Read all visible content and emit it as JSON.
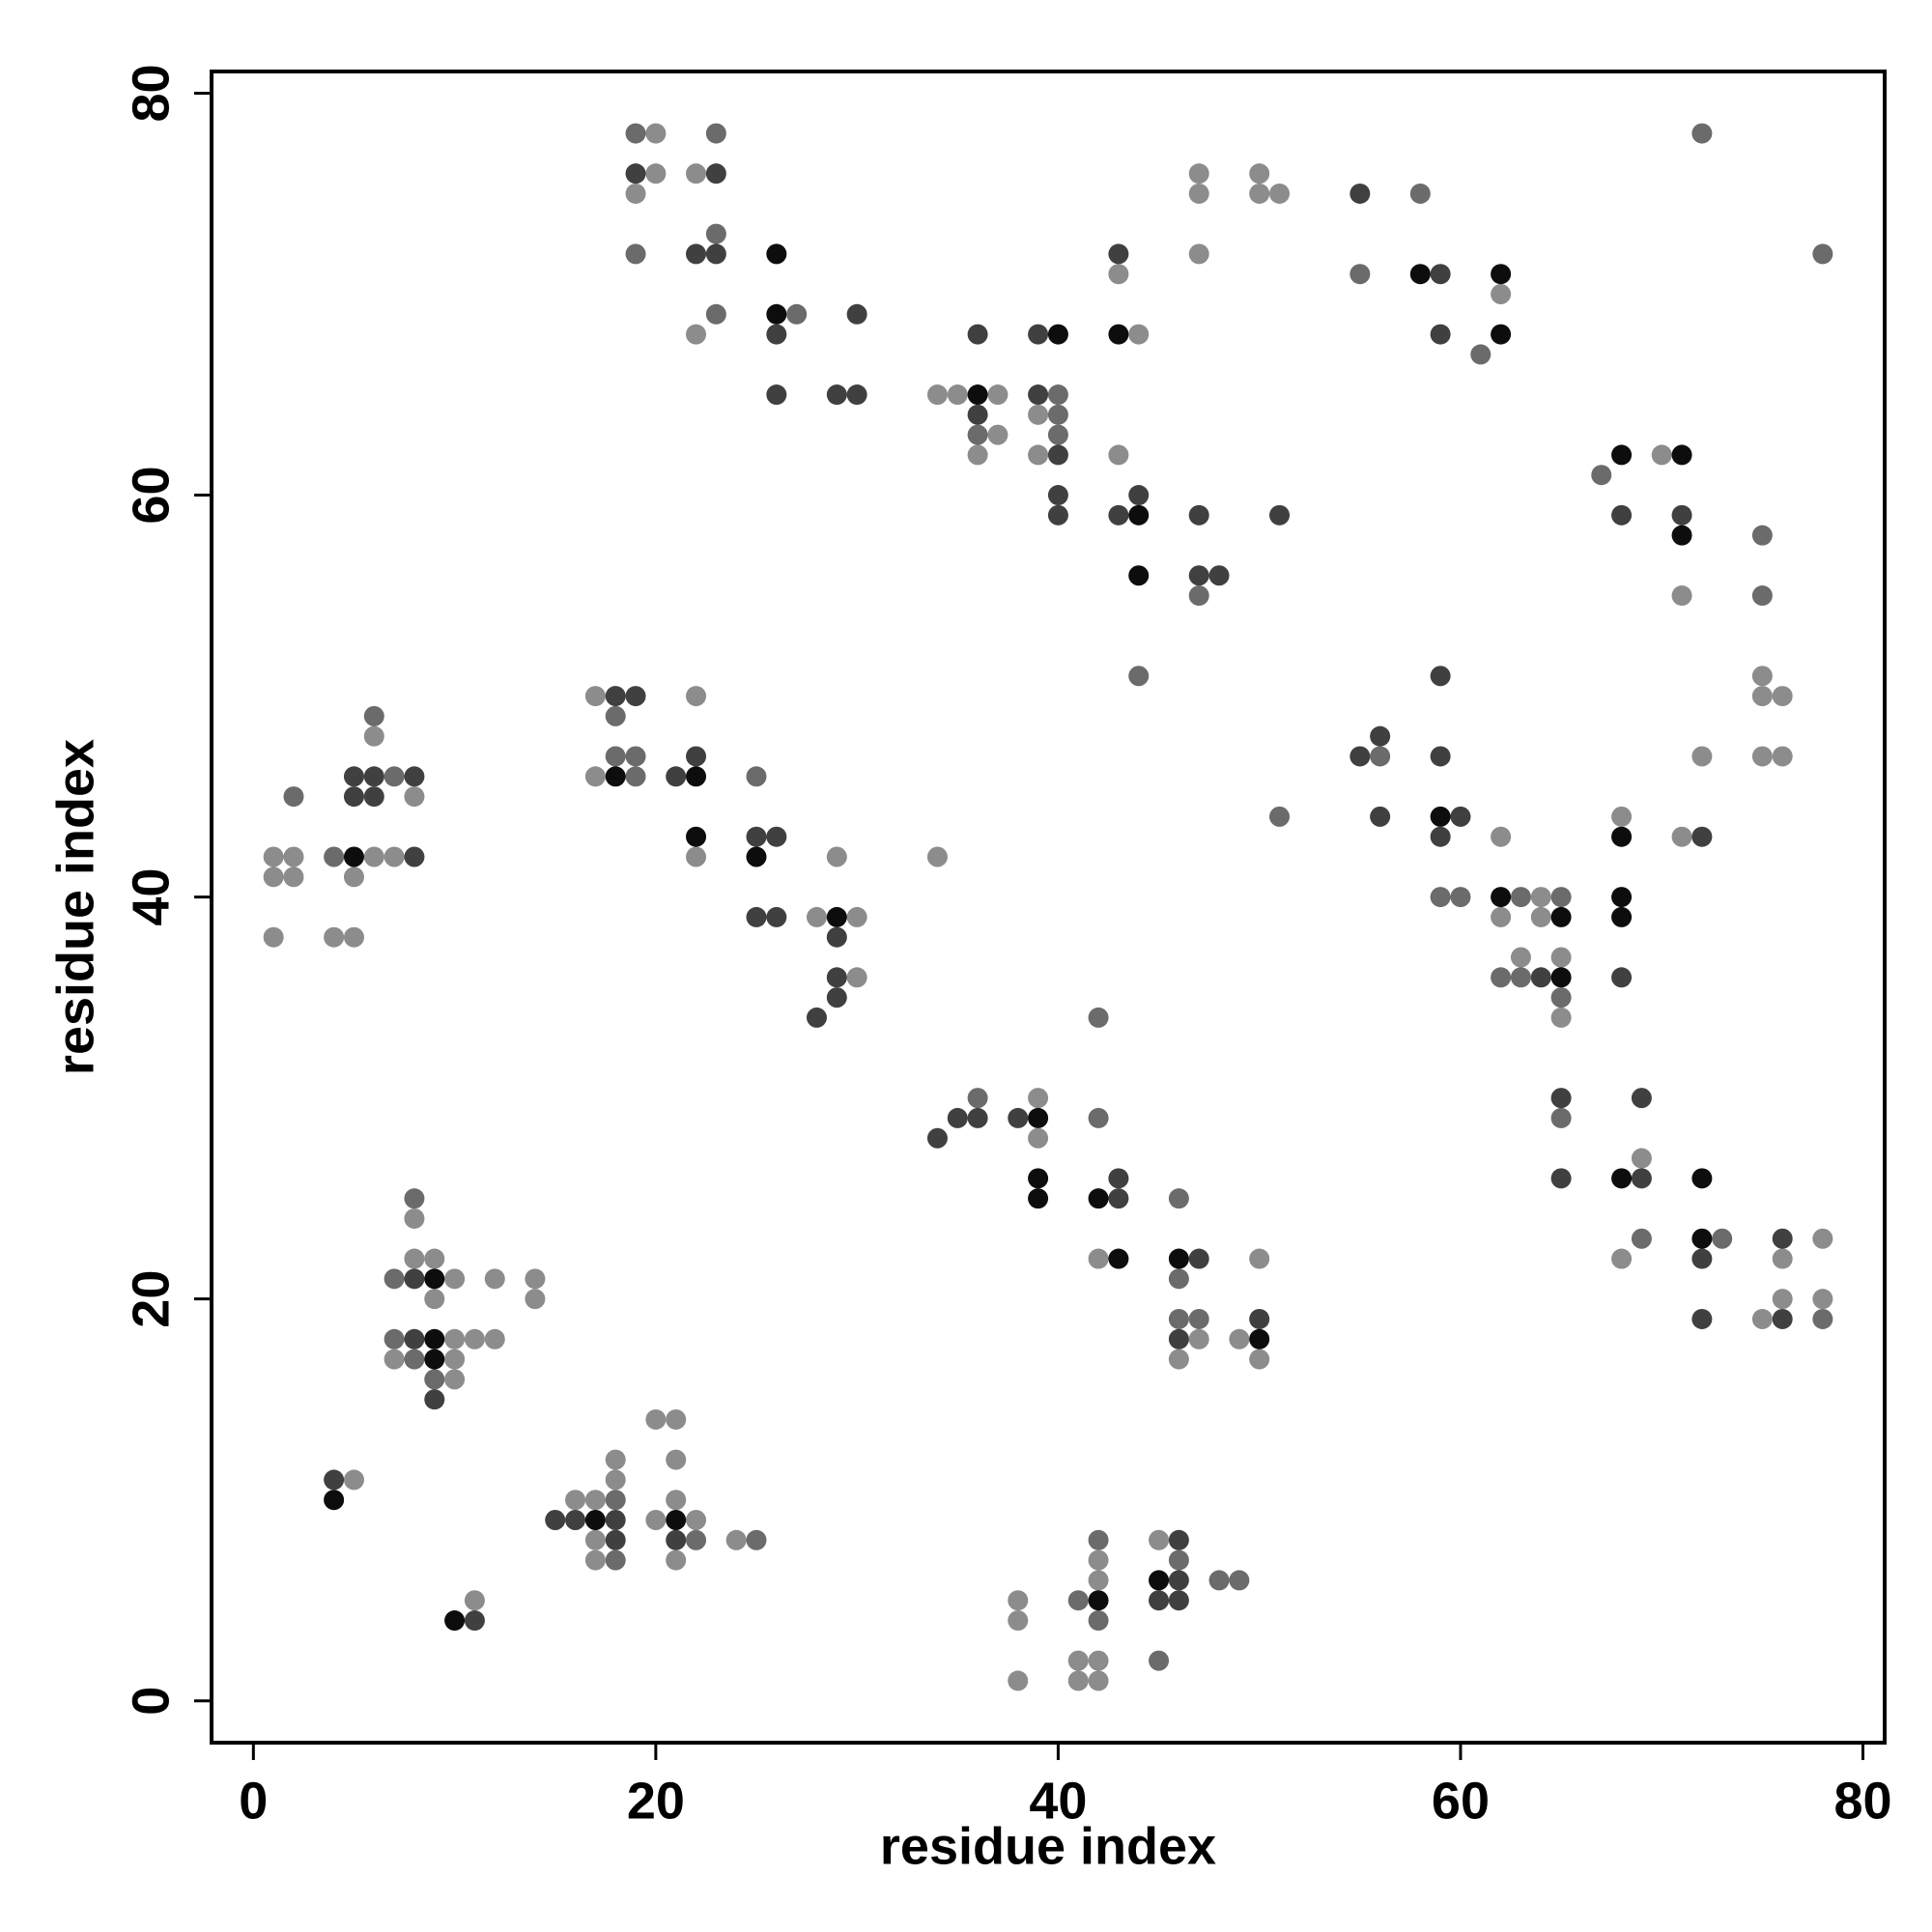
{
  "chart_data": {
    "type": "scatter",
    "xlabel": "residue index",
    "ylabel": "residue index",
    "xlim": [
      -2.08,
      81.08
    ],
    "ylim": [
      -2.08,
      81.08
    ],
    "xticks": [
      0,
      20,
      40,
      60,
      80
    ],
    "yticks": [
      0,
      20,
      40,
      60,
      80
    ],
    "series": [
      {
        "color": "#8c8c8c",
        "x": [
          20,
          20,
          22,
          19,
          22,
          34,
          35,
          37,
          39,
          37,
          36,
          39,
          43,
          44,
          43,
          47,
          47,
          47,
          50,
          50,
          51,
          62,
          70,
          71,
          75,
          75,
          76,
          72,
          75,
          76,
          71,
          62,
          64,
          62,
          64,
          63,
          65,
          65,
          68,
          69,
          68,
          78,
          76,
          76,
          78,
          75,
          17,
          22,
          17,
          22,
          29,
          28,
          30,
          30,
          34,
          6,
          8,
          1,
          2,
          6,
          7,
          1,
          2,
          5,
          1,
          4,
          5,
          39,
          39,
          42,
          47,
          46,
          49,
          50,
          50,
          8,
          8,
          9,
          10,
          12,
          14,
          9,
          14,
          10,
          11,
          12,
          7,
          10,
          10,
          5,
          11,
          20,
          21,
          18,
          21,
          18,
          16,
          17,
          21,
          20,
          22,
          17,
          24,
          17,
          21,
          45,
          42,
          42,
          38,
          38,
          41,
          42,
          38,
          41,
          42
        ],
        "y": [
          78,
          76,
          76,
          75,
          68,
          65,
          65,
          65,
          64,
          63,
          62,
          62,
          71,
          68,
          62,
          76,
          75,
          72,
          76,
          75,
          75,
          70,
          62,
          55,
          51,
          50,
          50,
          47,
          47,
          47,
          43,
          43,
          40,
          39,
          39,
          37,
          37,
          34,
          44,
          27,
          22,
          23,
          22,
          20,
          20,
          19,
          50,
          50,
          46,
          42,
          42,
          39,
          39,
          36,
          42,
          48,
          45,
          42,
          42,
          42,
          42,
          41,
          41,
          41,
          38,
          38,
          38,
          30,
          28,
          22,
          18,
          17,
          18,
          17,
          22,
          24,
          22,
          22,
          21,
          21,
          21,
          20,
          20,
          18,
          18,
          18,
          17,
          17,
          16,
          11,
          5,
          14,
          14,
          12,
          12,
          11,
          10,
          10,
          10,
          9,
          9,
          8,
          8,
          7,
          7,
          8,
          7,
          6,
          5,
          4,
          2,
          2,
          1,
          1,
          1
        ]
      },
      {
        "color": "#6b6b6b",
        "x": [
          19,
          23,
          23,
          19,
          23,
          27,
          40,
          40,
          36,
          40,
          47,
          44,
          58,
          55,
          61,
          72,
          78,
          67,
          75,
          75,
          56,
          51,
          59,
          60,
          63,
          65,
          62,
          63,
          65,
          65,
          69,
          73,
          78,
          18,
          18,
          19,
          19,
          25,
          2,
          6,
          7,
          4,
          36,
          42,
          42,
          46,
          46,
          46,
          47,
          8,
          7,
          7,
          8,
          9,
          18,
          22,
          25,
          18,
          42,
          46,
          48,
          49,
          41,
          42,
          45
        ],
        "y": [
          78,
          78,
          73,
          72,
          69,
          69,
          65,
          64,
          63,
          63,
          55,
          51,
          75,
          71,
          67,
          78,
          72,
          61,
          58,
          55,
          47,
          44,
          40,
          40,
          40,
          40,
          36,
          36,
          35,
          29,
          23,
          23,
          19,
          49,
          47,
          47,
          46,
          46,
          45,
          49,
          46,
          42,
          30,
          29,
          34,
          25,
          21,
          19,
          19,
          25,
          21,
          18,
          17,
          16,
          10,
          8,
          8,
          7,
          8,
          7,
          6,
          6,
          5,
          4,
          2
        ]
      },
      {
        "color": "#404040",
        "x": [
          19,
          23,
          22,
          23,
          30,
          26,
          26,
          29,
          30,
          36,
          39,
          39,
          36,
          40,
          40,
          40,
          43,
          44,
          43,
          47,
          51,
          47,
          48,
          55,
          59,
          59,
          68,
          71,
          59,
          55,
          56,
          56,
          59,
          60,
          59,
          64,
          68,
          65,
          69,
          65,
          69,
          72,
          72,
          76,
          76,
          18,
          19,
          22,
          21,
          25,
          26,
          25,
          26,
          29,
          29,
          29,
          28,
          5,
          6,
          8,
          5,
          6,
          8,
          34,
          35,
          36,
          38,
          43,
          43,
          47,
          46,
          50,
          8,
          8,
          9,
          4,
          11,
          15,
          16,
          18,
          18,
          21,
          46,
          46,
          45,
          46,
          72
        ],
        "y": [
          76,
          76,
          72,
          72,
          69,
          68,
          65,
          65,
          65,
          68,
          68,
          65,
          64,
          62,
          60,
          59,
          72,
          60,
          59,
          59,
          59,
          56,
          56,
          75,
          71,
          68,
          59,
          59,
          51,
          47,
          48,
          44,
          47,
          44,
          43,
          36,
          36,
          30,
          30,
          26,
          26,
          22,
          19,
          23,
          19,
          50,
          50,
          47,
          46,
          43,
          43,
          39,
          39,
          38,
          36,
          35,
          34,
          46,
          46,
          46,
          45,
          45,
          42,
          28,
          29,
          29,
          29,
          25,
          26,
          22,
          18,
          19,
          21,
          18,
          15,
          11,
          4,
          9,
          9,
          9,
          8,
          8,
          8,
          6,
          5,
          5,
          43
        ]
      },
      {
        "color": "#0d0d0d",
        "x": [
          26,
          26,
          40,
          36,
          43,
          44,
          44,
          58,
          62,
          62,
          68,
          71,
          71,
          59,
          62,
          65,
          65,
          68,
          68,
          68,
          68,
          72,
          72,
          18,
          22,
          22,
          25,
          29,
          5,
          39,
          39,
          39,
          42,
          43,
          46,
          50,
          9,
          9,
          9,
          4,
          10,
          17,
          21,
          45,
          42
        ],
        "y": [
          72,
          69,
          68,
          65,
          68,
          59,
          56,
          71,
          71,
          68,
          62,
          62,
          58,
          44,
          40,
          39,
          36,
          43,
          40,
          39,
          26,
          26,
          23,
          46,
          46,
          43,
          42,
          39,
          42,
          29,
          26,
          25,
          25,
          22,
          22,
          18,
          21,
          18,
          17,
          10,
          4,
          9,
          9,
          6,
          5
        ]
      }
    ]
  }
}
